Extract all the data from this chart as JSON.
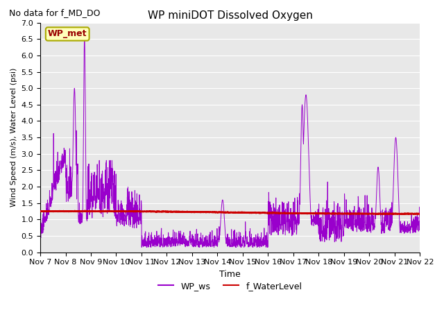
{
  "title": "WP miniDOT Dissolved Oxygen",
  "subtitle": "No data for f_MD_DO",
  "ylabel": "Wind Speed (m/s), Water Level (psi)",
  "xlabel": "Time",
  "ylim": [
    0.0,
    7.0
  ],
  "yticks": [
    0.0,
    0.5,
    1.0,
    1.5,
    2.0,
    2.5,
    3.0,
    3.5,
    4.0,
    4.5,
    5.0,
    5.5,
    6.0,
    6.5,
    7.0
  ],
  "legend_label_ws": "WP_ws",
  "legend_label_wl": "f_WaterLevel",
  "box_label": "WP_met",
  "ws_color": "#9900cc",
  "wl_color": "#cc0000",
  "background_color": "#e8e8e8",
  "title_fontsize": 11,
  "subtitle_fontsize": 9,
  "ylabel_fontsize": 8,
  "xlabel_fontsize": 9,
  "tick_fontsize": 8
}
